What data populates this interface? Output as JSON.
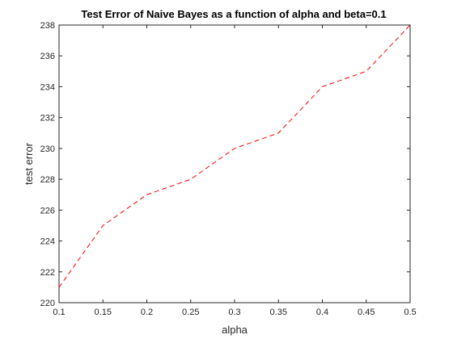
{
  "chart_data": {
    "type": "line",
    "title": "Test Error of Naive Bayes as a function of alpha and beta=0.1",
    "xlabel": "alpha",
    "ylabel": "test error",
    "xlim": [
      0.1,
      0.5
    ],
    "ylim": [
      220,
      238
    ],
    "xticks": [
      0.1,
      0.15,
      0.2,
      0.25,
      0.3,
      0.35,
      0.4,
      0.45,
      0.5
    ],
    "xtick_labels": [
      "0.1",
      "0.15",
      "0.2",
      "0.25",
      "0.3",
      "0.35",
      "0.4",
      "0.45",
      "0.5"
    ],
    "yticks": [
      220,
      222,
      224,
      226,
      228,
      230,
      232,
      234,
      236,
      238
    ],
    "ytick_labels": [
      "220",
      "222",
      "224",
      "226",
      "228",
      "230",
      "232",
      "234",
      "236",
      "238"
    ],
    "grid": false,
    "series": [
      {
        "x": [
          0.1,
          0.15,
          0.2,
          0.25,
          0.3,
          0.35,
          0.4,
          0.45,
          0.5
        ],
        "values": [
          221,
          225,
          227,
          228,
          230,
          231,
          234,
          235,
          238
        ],
        "color": "#ff0000",
        "line_style": "dashed"
      }
    ]
  }
}
